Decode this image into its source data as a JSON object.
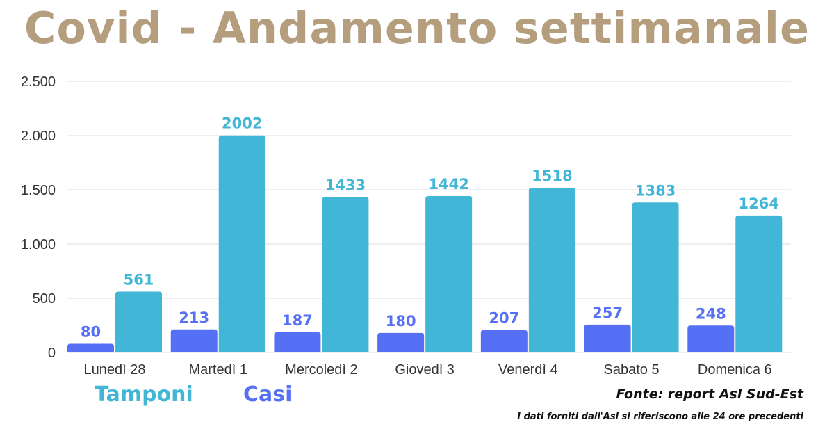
{
  "title": "Covid - Andamento settimanale",
  "legend": {
    "tamponi": "Tamponi",
    "casi": "Casi"
  },
  "source": "Fonte: report Asl Sud-Est",
  "note": "I dati forniti dall'Asl si riferiscono alle 24 ore precedenti",
  "colors": {
    "title": "#b59e7e",
    "tamponi": "#42b6d6",
    "casi": "#5570f5",
    "grid": "#dddddd",
    "axis_text": "#333333"
  },
  "chart_data": {
    "type": "bar",
    "title": "Covid - Andamento settimanale",
    "categories": [
      "Lunedì 28",
      "Martedì 1",
      "Mercoledì 2",
      "Giovedì 3",
      "Venerdì 4",
      "Sabato 5",
      "Domenica 6"
    ],
    "series": [
      {
        "name": "Casi",
        "values": [
          80,
          213,
          187,
          180,
          207,
          257,
          248
        ]
      },
      {
        "name": "Tamponi",
        "values": [
          561,
          2002,
          1433,
          1442,
          1518,
          1383,
          1264
        ]
      }
    ],
    "ylim": [
      0,
      2500
    ],
    "yticks": [
      {
        "value": 0,
        "label": "0"
      },
      {
        "value": 500,
        "label": "500"
      },
      {
        "value": 1000,
        "label": "1.000"
      },
      {
        "value": 1500,
        "label": "1.500"
      },
      {
        "value": 2000,
        "label": "2.000"
      },
      {
        "value": 2500,
        "label": "2.500"
      }
    ],
    "grid": true,
    "legend_position": "bottom-left",
    "data_labels": true
  }
}
